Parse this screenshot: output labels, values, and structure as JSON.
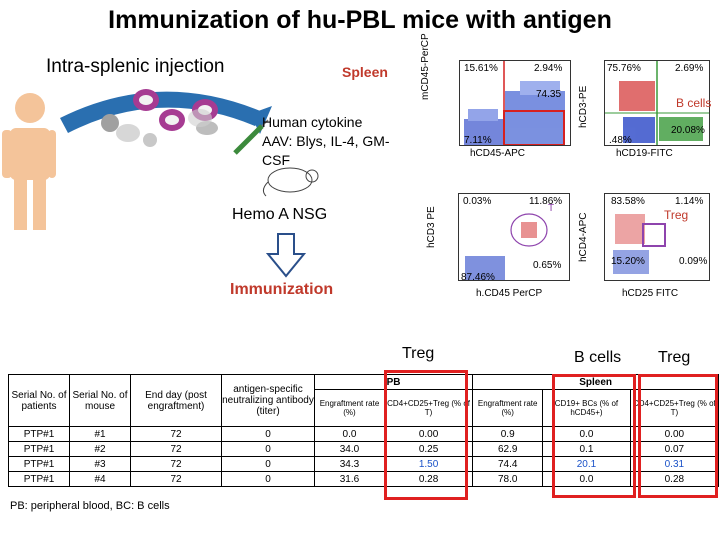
{
  "title": "Immunization of hu-PBL mice with antigen",
  "subtitle": "Intra-splenic injection",
  "spleen_label": "Spleen",
  "cytokine_text": "Human cytokine AAV: Blys, IL-4, GM-CSF",
  "mouse_label": "Hemo A NSG",
  "immunization_label": "Immunization",
  "colors": {
    "red": "#c0392b",
    "purple": "#8e44ad",
    "blue": "#1a52c8",
    "box_red": "#e02020"
  },
  "flow": {
    "plot1": {
      "q_tl": "15.61%",
      "q_tr": "2.94%",
      "q_mid": "74.35",
      "q_bl": "7.11%",
      "ylabel": "mCD45-PerCP",
      "xlabel": "hCD45-APC"
    },
    "plot2": {
      "q_tl": "75.76%",
      "q_tr": "2.69%",
      "q_bl": ".48%",
      "q_br": "20.08%",
      "ylabel": "hCD3-PE",
      "xlabel": "hCD19-FITC",
      "gate_label": "B cells"
    },
    "plot3": {
      "q_tl": "0.03%",
      "q_tr": "11.86%",
      "q_mid": "0.65%",
      "q_bl": "87.46%",
      "ylabel": "hCD3 PE",
      "xlabel": "h.CD45 PerCP",
      "gate": "T"
    },
    "plot4": {
      "q_tl": "83.58%",
      "q_tr": "1.14%",
      "q_bl": "15.20%",
      "q_br": "0.09%",
      "ylabel": "hCD4-APC",
      "xlabel": "hCD25 FITC",
      "gate_label": "Treg"
    }
  },
  "section_labels": {
    "treg_pb": "Treg",
    "bcells": "B cells",
    "treg_spleen": "Treg"
  },
  "table": {
    "headers": {
      "serial_patients": "Serial No. of patients",
      "serial_mouse": "Serial No. of mouse",
      "end_day": "End day (post engraftment)",
      "antibody": "antigen-specific neutralizing antibody (titer)",
      "pb": "PB",
      "spleen": "Spleen",
      "pb_engraft": "Engraftment rate (%)",
      "pb_treg": "CD4+CD25+Treg (% of T)",
      "sp_engraft": "Engraftment rate (%)",
      "sp_bc": "CD19+ BCs (% of hCD45+)",
      "sp_treg": "CD4+CD25+Treg (% of T)"
    },
    "rows": [
      {
        "patient": "PTP#1",
        "mouse": "#1",
        "end_day": "72",
        "antibody": "0",
        "pb_engraft": "0.0",
        "pb_treg": "0.00",
        "sp_engraft": "0.9",
        "sp_bc": "0.0",
        "sp_treg": "0.00"
      },
      {
        "patient": "PTP#1",
        "mouse": "#2",
        "end_day": "72",
        "antibody": "0",
        "pb_engraft": "34.0",
        "pb_treg": "0.25",
        "sp_engraft": "62.9",
        "sp_bc": "0.1",
        "sp_treg": "0.07"
      },
      {
        "patient": "PTP#1",
        "mouse": "#3",
        "end_day": "72",
        "antibody": "0",
        "pb_engraft": "34.3",
        "pb_treg": "1.50",
        "sp_engraft": "74.4",
        "sp_bc": "20.1",
        "sp_treg": "0.31"
      },
      {
        "patient": "PTP#1",
        "mouse": "#4",
        "end_day": "72",
        "antibody": "0",
        "pb_engraft": "31.6",
        "pb_treg": "0.28",
        "sp_engraft": "78.0",
        "sp_bc": "0.0",
        "sp_treg": "0.28"
      }
    ],
    "footnote": "PB: peripheral blood, BC: B cells"
  }
}
